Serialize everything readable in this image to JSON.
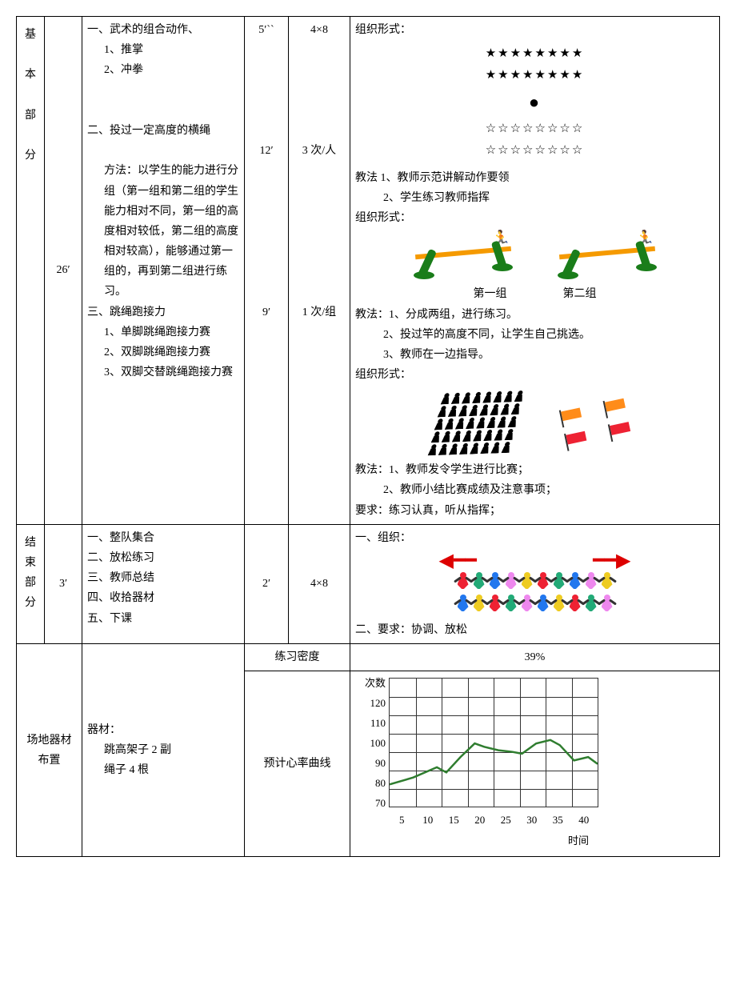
{
  "rows": {
    "main": {
      "label": "基本部分",
      "time_total": "26′",
      "sections": [
        {
          "heading": "一、武术的组合动作、",
          "items": [
            "1、推掌",
            "2、冲拳"
          ],
          "time": "5′``",
          "reps": "4×8"
        },
        {
          "heading": "二、投过一定高度的横绳",
          "method_label": "方法：",
          "method_text": "以学生的能力进行分组（第一组和第二组的学生能力相对不同，第一组的高度相对较低，第二组的高度相对较高），能够通过第一组的，再到第二组进行练习。",
          "time": "12′",
          "reps": "3 次/人"
        },
        {
          "heading": "三、跳绳跑接力",
          "items": [
            "1、单脚跳绳跑接力赛",
            "2、双脚跳绳跑接力赛",
            "3、双脚交替跳绳跑接力赛"
          ],
          "time": "9′",
          "reps": "1 次/组"
        }
      ],
      "guidance": {
        "block1": {
          "title": "组织形式：",
          "stars_filled": "★★★★★★★★",
          "stars_filled2": "★★★★★★★★",
          "dot": "●",
          "stars_open": "☆☆☆☆☆☆☆☆",
          "stars_open2": "☆☆☆☆☆☆☆☆",
          "teach_label": "教法",
          "teach1": "1、教师示范讲解动作要领",
          "teach2": "2、学生练习教师指挥"
        },
        "block2": {
          "title": "组织形式：",
          "group1": "第一组",
          "group2": "第二组",
          "teach_label": "教法：",
          "teach1": "1、分成两组，进行练习。",
          "teach2": "2、投过竿的高度不同，让学生自己挑选。",
          "teach3": "3、教师在一边指导。"
        },
        "block3": {
          "title": "组织形式：",
          "teach_label": "教法：",
          "teach1": "1、教师发令学生进行比赛；",
          "teach2": "2、教师小结比赛成绩及注意事项；",
          "req_label": "要求：",
          "req": "练习认真，听从指挥；"
        }
      }
    },
    "end": {
      "label": "结束部分",
      "time_total": "3′",
      "items": [
        "一、整队集合",
        "二、放松练习",
        "三、教师总结",
        "四、收拾器材",
        "五、下课"
      ],
      "time": "2′",
      "reps": "4×8",
      "org_title": "一、组织：",
      "req": "二、要求：协调、放松",
      "people_colors": [
        [
          "#e23",
          "#2a7",
          "#27e",
          "#e8e",
          "#ec2",
          "#e23",
          "#2a7",
          "#27e",
          "#e8e",
          "#ec2"
        ],
        [
          "#27e",
          "#ec2",
          "#e23",
          "#2a7",
          "#e8e",
          "#27e",
          "#ec2",
          "#e23",
          "#2a7",
          "#e8e"
        ]
      ]
    },
    "bottom": {
      "site_label": "场地器材布置",
      "equip_label": "器材：",
      "equip1": "跳高架子 2 副",
      "equip2": "绳子 4 根",
      "density_label": "练习密度",
      "density_value": "39%",
      "curve_label": "预计心率曲线",
      "chart": {
        "y_title": "次数",
        "x_title": "时间",
        "y_ticks": [
          "120",
          "110",
          "100",
          "90",
          "80",
          "70"
        ],
        "x_ticks": [
          "5",
          "10",
          "15",
          "20",
          "25",
          "30",
          "35",
          "40"
        ],
        "line_color": "#2f7d2f",
        "grid_color": "#333333",
        "points": [
          [
            0,
            68
          ],
          [
            5,
            72
          ],
          [
            10,
            78
          ],
          [
            12,
            75
          ],
          [
            15,
            84
          ],
          [
            18,
            92
          ],
          [
            20,
            90
          ],
          [
            23,
            88
          ],
          [
            26,
            87
          ],
          [
            28,
            86
          ],
          [
            31,
            92
          ],
          [
            34,
            94
          ],
          [
            36,
            91
          ],
          [
            39,
            82
          ],
          [
            42,
            84
          ],
          [
            44,
            80
          ]
        ]
      }
    }
  }
}
